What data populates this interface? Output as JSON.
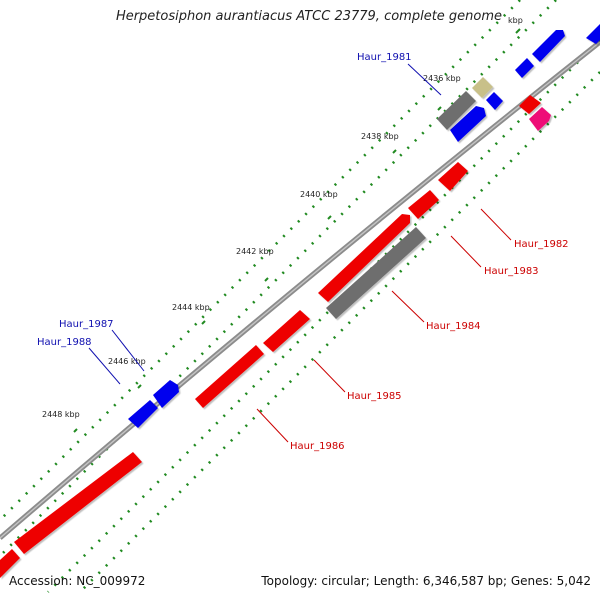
{
  "title": "Herpetosiphon aurantiacus ATCC 23779, complete genome",
  "footer": {
    "accession": "Accession: NC_009972",
    "summary": "Topology: circular; Length: 6,346,587 bp; Genes: 5,042"
  },
  "tick_labels": [
    "kbp",
    "2436 kbp",
    "2438 kbp",
    "2440 kbp",
    "2442 kbp",
    "2444 kbp",
    "2446 kbp",
    "2448 kbp"
  ],
  "gene_labels": {
    "forward": [
      "Haur_1981",
      "Haur_1987",
      "Haur_1988"
    ],
    "reverse": [
      "Haur_1982",
      "Haur_1983",
      "Haur_1984",
      "Haur_1985",
      "Haur_1986"
    ]
  },
  "colors": {
    "backbone": "#8c8c8c",
    "forward_gene": "#0000ee",
    "reverse_gene": "#ee0000",
    "pseudo_gene": "#6e6e6e",
    "rna_gene": "#c8c089",
    "misc_feature": "#ee1177",
    "tick": "#228b22",
    "forward_label": "#1010b0",
    "reverse_label": "#cc0000"
  }
}
